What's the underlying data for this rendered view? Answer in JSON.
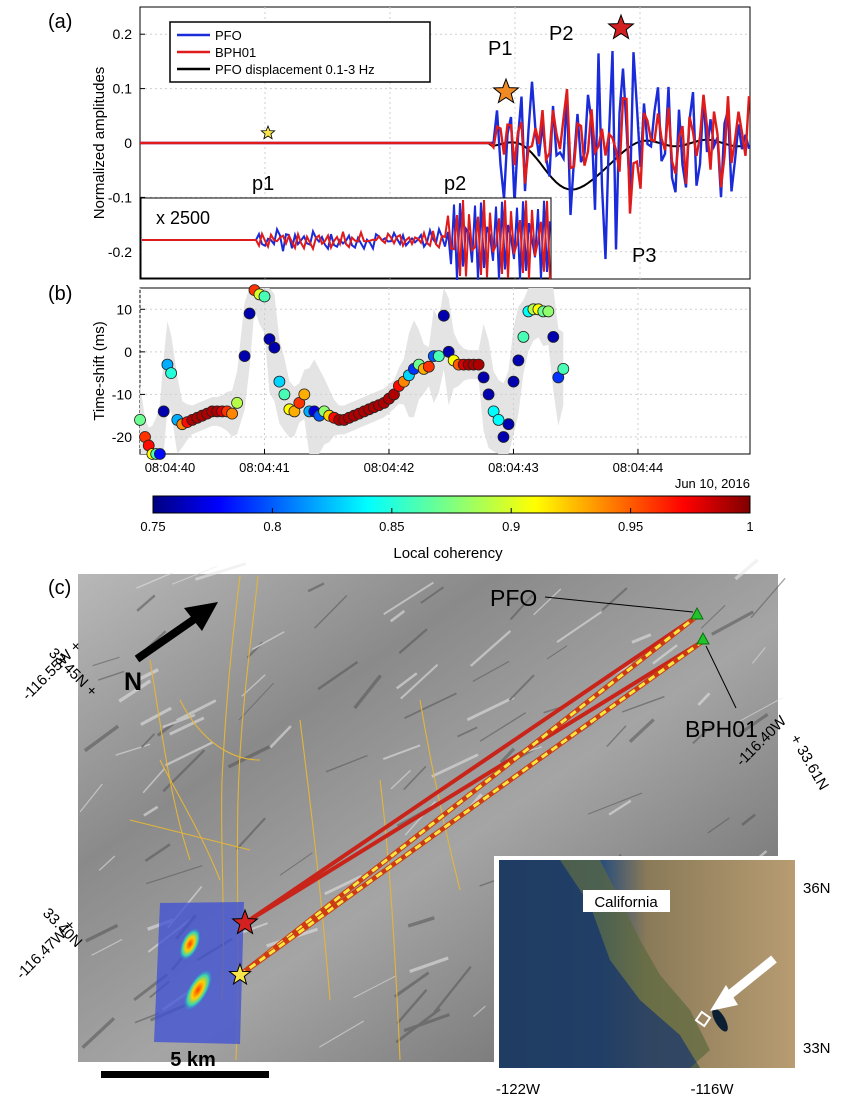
{
  "panels": {
    "a": "(a)",
    "b": "(b)",
    "c": "(c)"
  },
  "chart_data": [
    {
      "type": "line",
      "panel": "a",
      "ylabel": "Normalized amplitudes",
      "ylim": [
        -0.25,
        0.25
      ],
      "yticks": [
        -0.2,
        -0.1,
        0,
        0.1,
        0.2
      ],
      "ytick_labels": [
        "-0.2",
        "-0.1",
        "0",
        "0.1",
        "0.2"
      ],
      "grid": true,
      "legend_position": "top-left",
      "series": [
        {
          "name": "PFO",
          "color": "#1a2bd9"
        },
        {
          "name": "BPH01",
          "color": "#e01b1b"
        },
        {
          "name": "PFO displacement 0.1-3 Hz",
          "color": "#000000"
        }
      ],
      "phase_labels": [
        "P1",
        "P2",
        "P3",
        "p1",
        "p2"
      ],
      "inset_label": "x 2500"
    },
    {
      "type": "scatter",
      "panel": "b",
      "ylabel": "Time-shift (ms)",
      "ylim": [
        -24,
        15
      ],
      "yticks": [
        -20,
        -10,
        0,
        10
      ],
      "ytick_labels": [
        "-20",
        "-10",
        "0",
        "10"
      ],
      "xtick_labels": [
        "08:04:40",
        "08:04:41",
        "08:04:42",
        "08:04:43",
        "08:04:44"
      ],
      "date_label": "Jun 10, 2016",
      "grid": true,
      "points": [
        {
          "t": 0.0,
          "y": -16,
          "c": 0.87
        },
        {
          "t": 0.04,
          "y": -20,
          "c": 0.96
        },
        {
          "t": 0.07,
          "y": -22,
          "c": 0.97
        },
        {
          "t": 0.1,
          "y": -24,
          "c": 0.91
        },
        {
          "t": 0.13,
          "y": -24,
          "c": 0.86
        },
        {
          "t": 0.16,
          "y": -24,
          "c": 0.78
        },
        {
          "t": 0.19,
          "y": -14,
          "c": 0.76
        },
        {
          "t": 0.22,
          "y": -3,
          "c": 0.82
        },
        {
          "t": 0.25,
          "y": -5,
          "c": 0.85
        },
        {
          "t": 0.3,
          "y": -16,
          "c": 0.82
        },
        {
          "t": 0.34,
          "y": -17,
          "c": 0.94
        },
        {
          "t": 0.38,
          "y": -16.5,
          "c": 0.97
        },
        {
          "t": 0.42,
          "y": -16,
          "c": 0.99
        },
        {
          "t": 0.46,
          "y": -15.5,
          "c": 0.99
        },
        {
          "t": 0.5,
          "y": -15,
          "c": 0.99
        },
        {
          "t": 0.54,
          "y": -14.5,
          "c": 0.99
        },
        {
          "t": 0.58,
          "y": -14,
          "c": 0.99
        },
        {
          "t": 0.62,
          "y": -14,
          "c": 0.99
        },
        {
          "t": 0.66,
          "y": -14,
          "c": 0.98
        },
        {
          "t": 0.7,
          "y": -14,
          "c": 0.96
        },
        {
          "t": 0.74,
          "y": -14.5,
          "c": 0.94
        },
        {
          "t": 0.78,
          "y": -12,
          "c": 0.89
        },
        {
          "t": 0.84,
          "y": -1,
          "c": 0.76
        },
        {
          "t": 0.88,
          "y": 9,
          "c": 0.76
        },
        {
          "t": 0.92,
          "y": 14.5,
          "c": 0.96
        },
        {
          "t": 0.96,
          "y": 13.5,
          "c": 0.9
        },
        {
          "t": 1.0,
          "y": 13,
          "c": 0.86
        },
        {
          "t": 1.04,
          "y": 3,
          "c": 0.76
        },
        {
          "t": 1.08,
          "y": 1,
          "c": 0.76
        },
        {
          "t": 1.12,
          "y": -7,
          "c": 0.83
        },
        {
          "t": 1.16,
          "y": -10,
          "c": 0.86
        },
        {
          "t": 1.2,
          "y": -13.5,
          "c": 0.91
        },
        {
          "t": 1.24,
          "y": -14,
          "c": 0.93
        },
        {
          "t": 1.28,
          "y": -12,
          "c": 0.96
        },
        {
          "t": 1.32,
          "y": -10,
          "c": 0.93
        },
        {
          "t": 1.36,
          "y": -14,
          "c": 0.82
        },
        {
          "t": 1.4,
          "y": -14,
          "c": 0.77
        },
        {
          "t": 1.44,
          "y": -15,
          "c": 0.8
        },
        {
          "t": 1.48,
          "y": -14,
          "c": 0.88
        },
        {
          "t": 1.52,
          "y": -15,
          "c": 0.92
        },
        {
          "t": 1.56,
          "y": -15.5,
          "c": 0.97
        },
        {
          "t": 1.6,
          "y": -16,
          "c": 0.99
        },
        {
          "t": 1.64,
          "y": -16,
          "c": 0.99
        },
        {
          "t": 1.68,
          "y": -15.5,
          "c": 0.99
        },
        {
          "t": 1.72,
          "y": -15,
          "c": 0.99
        },
        {
          "t": 1.76,
          "y": -14.5,
          "c": 0.99
        },
        {
          "t": 1.8,
          "y": -14,
          "c": 0.99
        },
        {
          "t": 1.84,
          "y": -13.5,
          "c": 0.99
        },
        {
          "t": 1.88,
          "y": -13,
          "c": 0.99
        },
        {
          "t": 1.92,
          "y": -12.5,
          "c": 0.99
        },
        {
          "t": 1.96,
          "y": -12,
          "c": 0.99
        },
        {
          "t": 2.0,
          "y": -11,
          "c": 0.99
        },
        {
          "t": 2.04,
          "y": -10,
          "c": 0.99
        },
        {
          "t": 2.08,
          "y": -8,
          "c": 0.97
        },
        {
          "t": 2.12,
          "y": -7,
          "c": 0.94
        },
        {
          "t": 2.16,
          "y": -5.5,
          "c": 0.83
        },
        {
          "t": 2.2,
          "y": -4,
          "c": 0.79
        },
        {
          "t": 2.24,
          "y": -3,
          "c": 0.87
        },
        {
          "t": 2.28,
          "y": -4,
          "c": 0.93
        },
        {
          "t": 2.32,
          "y": -3.5,
          "c": 0.96
        },
        {
          "t": 2.36,
          "y": -1,
          "c": 0.8
        },
        {
          "t": 2.4,
          "y": -1,
          "c": 0.86
        },
        {
          "t": 2.44,
          "y": 8.5,
          "c": 0.76
        },
        {
          "t": 2.48,
          "y": 0,
          "c": 0.76
        },
        {
          "t": 2.52,
          "y": -2,
          "c": 0.91
        },
        {
          "t": 2.56,
          "y": -3,
          "c": 0.95
        },
        {
          "t": 2.6,
          "y": -3,
          "c": 0.98
        },
        {
          "t": 2.64,
          "y": -3,
          "c": 0.99
        },
        {
          "t": 2.68,
          "y": -3,
          "c": 0.99
        },
        {
          "t": 2.72,
          "y": -3,
          "c": 0.99
        },
        {
          "t": 2.76,
          "y": -6,
          "c": 0.76
        },
        {
          "t": 2.8,
          "y": -10,
          "c": 0.76
        },
        {
          "t": 2.84,
          "y": -14,
          "c": 0.84
        },
        {
          "t": 2.88,
          "y": -16,
          "c": 0.84
        },
        {
          "t": 2.92,
          "y": -20,
          "c": 0.76
        },
        {
          "t": 2.96,
          "y": -17,
          "c": 0.76
        },
        {
          "t": 3.0,
          "y": -7,
          "c": 0.76
        },
        {
          "t": 3.04,
          "y": -2,
          "c": 0.76
        },
        {
          "t": 3.08,
          "y": 3.5,
          "c": 0.86
        },
        {
          "t": 3.12,
          "y": 9.5,
          "c": 0.84
        },
        {
          "t": 3.16,
          "y": 10,
          "c": 0.89
        },
        {
          "t": 3.2,
          "y": 10,
          "c": 0.91
        },
        {
          "t": 3.24,
          "y": 9.5,
          "c": 0.87
        },
        {
          "t": 3.28,
          "y": 9.5,
          "c": 0.88
        },
        {
          "t": 3.32,
          "y": 3.5,
          "c": 0.76
        },
        {
          "t": 3.36,
          "y": -6,
          "c": 0.79
        },
        {
          "t": 3.4,
          "y": -4,
          "c": 0.86
        }
      ]
    }
  ],
  "colorbar": {
    "label": "Local coherency",
    "ticks": [
      "0.75",
      "0.8",
      "0.85",
      "0.9",
      "0.95",
      "1"
    ],
    "min": 0.75,
    "max": 1
  },
  "map": {
    "stations": [
      "PFO",
      "BPH01"
    ],
    "north_label": "N",
    "scale_label": "5 km",
    "corner_labels": [
      "33.45N +",
      "-116.55W +",
      "33.40N",
      "-116.47W +",
      "-116.40W",
      "+ 33.61N"
    ],
    "inset": {
      "label": "California",
      "lat_labels": [
        "36N",
        "33N"
      ],
      "lon_labels": [
        "-122W",
        "-116W"
      ]
    }
  },
  "colors": {
    "pfo": "#1a2bd9",
    "bph01": "#e01b1b",
    "star_red": "#d42020",
    "star_orange": "#f08a24",
    "star_yellow": "#f7e54a",
    "station_green": "#22c32a"
  }
}
